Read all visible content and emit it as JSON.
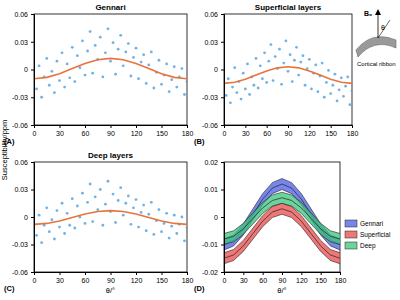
{
  "chart_data": [
    {
      "type": "scatter",
      "title": "Gennari",
      "panel_label": "(A)",
      "y_label": "Susceptibility/ppm",
      "xlim": [
        0,
        180
      ],
      "ylim": [
        -0.06,
        0.06
      ],
      "xticks": [
        0,
        30,
        60,
        90,
        120,
        150,
        180
      ],
      "yticks": [
        -0.06,
        -0.03,
        0,
        0.03,
        0.06
      ],
      "series": [
        {
          "type": "scatter",
          "marker": "circle",
          "color": "#4a9fe0",
          "x": [
            3,
            6,
            9,
            12,
            15,
            18,
            21,
            24,
            27,
            30,
            33,
            36,
            39,
            42,
            45,
            48,
            51,
            54,
            57,
            60,
            63,
            66,
            69,
            72,
            75,
            78,
            81,
            84,
            87,
            90,
            93,
            96,
            99,
            102,
            105,
            108,
            111,
            114,
            117,
            120,
            123,
            126,
            129,
            132,
            135,
            138,
            141,
            144,
            147,
            150,
            153,
            156,
            159,
            162,
            165,
            168,
            171,
            174,
            177,
            180
          ],
          "values": [
            -0.021,
            0.004,
            -0.03,
            -0.008,
            0.012,
            -0.017,
            -0.002,
            -0.025,
            0.009,
            -0.012,
            0.018,
            -0.019,
            0.006,
            -0.009,
            0.024,
            -0.013,
            0.015,
            0.002,
            0.031,
            -0.006,
            0.02,
            0.041,
            -0.004,
            0.026,
            0.011,
            0.035,
            -0.008,
            0.018,
            0.044,
            0.009,
            0.029,
            -0.005,
            0.022,
            0.037,
            0.004,
            0.019,
            0.028,
            -0.007,
            0.013,
            0.023,
            -0.01,
            0.008,
            0.016,
            -0.015,
            0.005,
            0.019,
            -0.02,
            -0.003,
            0.01,
            -0.016,
            -0.006,
            0.006,
            -0.024,
            -0.011,
            0.003,
            -0.019,
            -0.008,
            0.001,
            -0.027,
            -0.013
          ]
        },
        {
          "type": "line",
          "color": "#e8743b",
          "x": [
            0,
            15,
            30,
            45,
            60,
            75,
            90,
            105,
            120,
            135,
            150,
            165,
            180
          ],
          "values": [
            -0.01,
            -0.0085,
            -0.0045,
            0.001,
            0.0065,
            0.0105,
            0.012,
            0.0105,
            0.0065,
            0.001,
            -0.0045,
            -0.0085,
            -0.01
          ]
        }
      ]
    },
    {
      "type": "scatter",
      "title": "Superficial layers",
      "panel_label": "(B)",
      "annotations": [
        "B₀",
        "θ",
        "Cortical ribbon"
      ],
      "xlim": [
        0,
        180
      ],
      "ylim": [
        -0.06,
        0.06
      ],
      "xticks": [
        0,
        30,
        60,
        90,
        120,
        150,
        180
      ],
      "yticks": [
        -0.06,
        -0.03,
        0,
        0.03,
        0.06
      ],
      "series": [
        {
          "type": "scatter",
          "marker": "circle",
          "color": "#4a9fe0",
          "x": [
            3,
            6,
            9,
            12,
            15,
            18,
            21,
            24,
            27,
            30,
            33,
            36,
            39,
            42,
            45,
            48,
            51,
            54,
            57,
            60,
            63,
            66,
            69,
            72,
            75,
            78,
            81,
            84,
            87,
            90,
            93,
            96,
            99,
            102,
            105,
            108,
            111,
            114,
            117,
            120,
            123,
            126,
            129,
            132,
            135,
            138,
            141,
            144,
            147,
            150,
            153,
            156,
            159,
            162,
            165,
            168,
            171,
            174,
            177,
            180
          ],
          "values": [
            -0.028,
            -0.01,
            -0.036,
            -0.019,
            0.002,
            -0.025,
            -0.013,
            -0.032,
            -0.004,
            -0.021,
            0.006,
            -0.027,
            -0.008,
            -0.017,
            0.012,
            -0.02,
            0.004,
            -0.01,
            0.018,
            -0.014,
            0.009,
            0.027,
            -0.012,
            0.014,
            0.001,
            0.022,
            -0.016,
            0.007,
            0.031,
            -0.002,
            0.016,
            -0.013,
            0.01,
            0.024,
            -0.006,
            0.008,
            0.015,
            -0.017,
            0.001,
            0.011,
            -0.021,
            -0.004,
            0.005,
            -0.024,
            -0.007,
            0.007,
            -0.03,
            -0.014,
            -0.001,
            -0.026,
            -0.017,
            -0.005,
            -0.034,
            -0.022,
            -0.009,
            -0.029,
            -0.018,
            -0.008,
            -0.038,
            -0.023
          ]
        },
        {
          "type": "line",
          "color": "#e8743b",
          "x": [
            0,
            15,
            30,
            45,
            60,
            75,
            90,
            105,
            120,
            135,
            150,
            165,
            180
          ],
          "values": [
            -0.015,
            -0.0138,
            -0.0105,
            -0.006,
            -0.0015,
            0.0018,
            0.003,
            0.0018,
            -0.0015,
            -0.006,
            -0.0105,
            -0.0138,
            -0.015
          ]
        }
      ]
    },
    {
      "type": "scatter",
      "title": "Deep layers",
      "panel_label": "(C)",
      "x_label": "θ/°",
      "xlim": [
        0,
        180
      ],
      "ylim": [
        -0.06,
        0.06
      ],
      "xticks": [
        0,
        30,
        60,
        90,
        120,
        150,
        180
      ],
      "yticks": [
        -0.06,
        -0.03,
        0,
        0.03,
        0.06
      ],
      "series": [
        {
          "type": "scatter",
          "marker": "circle",
          "color": "#4a9fe0",
          "x": [
            3,
            6,
            9,
            12,
            15,
            18,
            21,
            24,
            27,
            30,
            33,
            36,
            39,
            42,
            45,
            48,
            51,
            54,
            57,
            60,
            63,
            66,
            69,
            72,
            75,
            78,
            81,
            84,
            87,
            90,
            93,
            96,
            99,
            102,
            105,
            108,
            111,
            114,
            117,
            120,
            123,
            126,
            129,
            132,
            135,
            138,
            141,
            144,
            147,
            150,
            153,
            156,
            159,
            162,
            165,
            168,
            171,
            174,
            177,
            180
          ],
          "values": [
            -0.02,
            0.002,
            -0.028,
            -0.009,
            0.01,
            -0.016,
            -0.003,
            -0.024,
            0.007,
            -0.011,
            0.015,
            -0.018,
            0.004,
            -0.009,
            0.02,
            -0.012,
            0.012,
            0.0,
            0.026,
            -0.007,
            0.016,
            0.036,
            -0.005,
            0.022,
            0.008,
            0.03,
            -0.009,
            0.014,
            0.039,
            0.006,
            0.025,
            -0.006,
            0.018,
            0.032,
            0.002,
            0.015,
            0.023,
            -0.008,
            0.01,
            0.019,
            -0.011,
            0.005,
            0.013,
            -0.015,
            0.003,
            0.016,
            -0.019,
            -0.004,
            0.008,
            -0.016,
            -0.007,
            0.004,
            -0.023,
            -0.01,
            0.002,
            -0.018,
            -0.008,
            0.0,
            -0.026,
            -0.012
          ]
        },
        {
          "type": "line",
          "color": "#e8743b",
          "x": [
            0,
            15,
            30,
            45,
            60,
            75,
            90,
            105,
            120,
            135,
            150,
            165,
            180
          ],
          "values": [
            -0.008,
            -0.007,
            -0.0043,
            -0.0005,
            0.0033,
            0.006,
            0.007,
            0.006,
            0.0033,
            -0.0005,
            -0.0043,
            -0.007,
            -0.008
          ]
        }
      ]
    },
    {
      "type": "line",
      "panel_label": "(D)",
      "x_label": "θ/°",
      "legend": "right",
      "xlim": [
        0,
        180
      ],
      "ylim": [
        -0.02,
        0.02
      ],
      "xticks": [
        0,
        30,
        60,
        90,
        120,
        150,
        180
      ],
      "yticks": [
        -0.02,
        -0.01,
        0,
        0.01,
        0.02
      ],
      "series": [
        {
          "name": "Gennari",
          "color": "#4b5ee6",
          "x": [
            0,
            15,
            30,
            45,
            60,
            75,
            90,
            105,
            120,
            135,
            150,
            165,
            180
          ],
          "values": [
            -0.01,
            -0.0085,
            -0.0045,
            0.001,
            0.0065,
            0.0105,
            0.012,
            0.0105,
            0.0065,
            0.001,
            -0.0045,
            -0.0085,
            -0.01
          ],
          "lower": [
            -0.012,
            -0.0105,
            -0.0065,
            -0.001,
            0.0045,
            0.0085,
            0.01,
            0.0085,
            0.0045,
            -0.001,
            -0.0065,
            -0.0105,
            -0.012
          ],
          "upper": [
            -0.008,
            -0.0065,
            -0.0025,
            0.003,
            0.0085,
            0.0125,
            0.014,
            0.0125,
            0.0085,
            0.003,
            -0.0025,
            -0.0065,
            -0.008
          ]
        },
        {
          "name": "Superficial",
          "color": "#e84a4a",
          "x": [
            0,
            15,
            30,
            45,
            60,
            75,
            90,
            105,
            120,
            135,
            150,
            165,
            180
          ],
          "values": [
            -0.015,
            -0.0138,
            -0.0105,
            -0.006,
            -0.0015,
            0.0018,
            0.003,
            0.0018,
            -0.0015,
            -0.006,
            -0.0105,
            -0.0138,
            -0.015
          ],
          "lower": [
            -0.017,
            -0.0158,
            -0.0125,
            -0.008,
            -0.0035,
            -0.0002,
            0.001,
            -0.0002,
            -0.0035,
            -0.008,
            -0.0125,
            -0.0158,
            -0.017
          ],
          "upper": [
            -0.013,
            -0.0118,
            -0.0085,
            -0.004,
            0.0005,
            0.0038,
            0.005,
            0.0038,
            0.0005,
            -0.004,
            -0.0085,
            -0.0118,
            -0.013
          ]
        },
        {
          "name": "Deep",
          "color": "#3cc47c",
          "x": [
            0,
            15,
            30,
            45,
            60,
            75,
            90,
            105,
            120,
            135,
            150,
            165,
            180
          ],
          "values": [
            -0.008,
            -0.007,
            -0.0043,
            -0.0005,
            0.0033,
            0.006,
            0.007,
            0.006,
            0.0033,
            -0.0005,
            -0.0043,
            -0.007,
            -0.008
          ],
          "lower": [
            -0.01,
            -0.009,
            -0.0063,
            -0.0025,
            0.0013,
            0.004,
            0.005,
            0.004,
            0.0013,
            -0.0025,
            -0.0063,
            -0.009,
            -0.01
          ],
          "upper": [
            -0.006,
            -0.005,
            -0.0023,
            0.0015,
            0.0053,
            0.008,
            0.009,
            0.008,
            0.0053,
            0.0015,
            -0.0023,
            -0.005,
            -0.006
          ]
        }
      ]
    }
  ]
}
